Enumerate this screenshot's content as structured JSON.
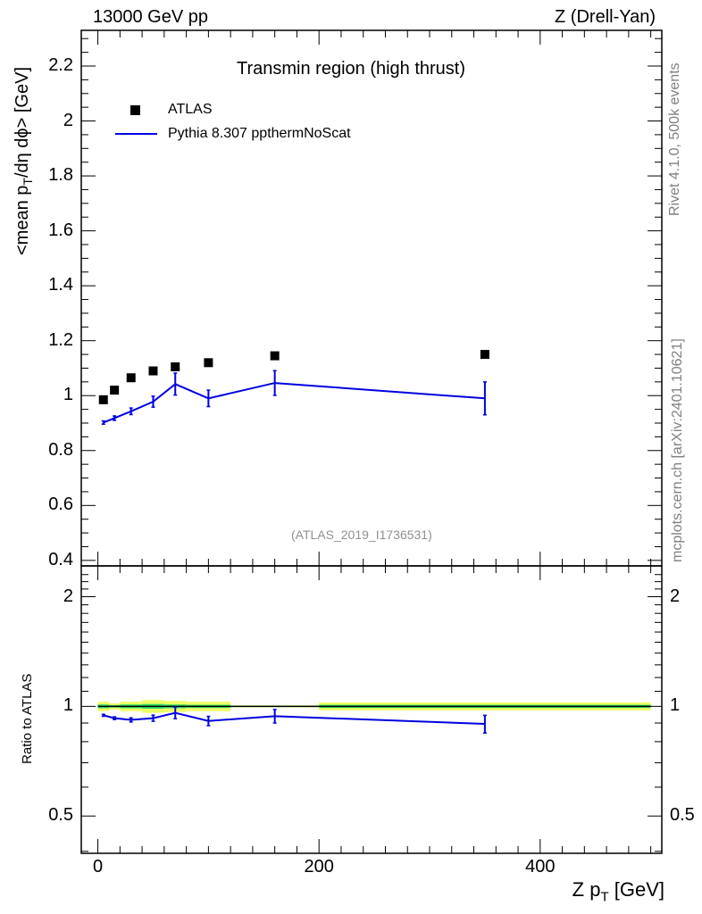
{
  "header": {
    "left": "13000 GeV pp",
    "right": "Z (Drell-Yan)"
  },
  "side_labels": {
    "rivet": "Rivet 4.1.0,  500k events",
    "source": "mcplots.cern.ch [arXiv:2401.10621]"
  },
  "colors": {
    "data": "#000000",
    "mc": "#0000e0",
    "band_inner": "#33dd66",
    "band_outer": "#eeff66",
    "watermark": "#909090"
  },
  "chart_data": [
    {
      "type": "line",
      "panel": "main",
      "title": "Transmin region (high thrust)",
      "watermark": "(ATLAS_2019_I1736531)",
      "ylabel_parts": {
        "a": "<mean p",
        "sub": "T",
        "b": "/dη dϕ> [GeV]"
      },
      "ylim": [
        0.38,
        2.33
      ],
      "yticks": [
        0.4,
        0.6,
        0.8,
        1,
        1.2,
        1.4,
        1.6,
        1.8,
        2,
        2.2
      ],
      "ytick_labels": [
        "0.4",
        "0.6",
        "0.8",
        "1",
        "1.2",
        "1.4",
        "1.6",
        "1.8",
        "2",
        "2.2"
      ],
      "legend": {
        "data_label": "ATLAS",
        "mc_label": "Pythia 8.307 ppthermNoScat",
        "position": "top-left"
      },
      "series": [
        {
          "name": "ATLAS",
          "style": "markers",
          "x": [
            5,
            15,
            30,
            50,
            70,
            100,
            160,
            350
          ],
          "y": [
            0.985,
            1.02,
            1.065,
            1.09,
            1.105,
            1.12,
            1.145,
            1.15
          ]
        },
        {
          "name": "Pythia 8.307 ppthermNoScat",
          "style": "line",
          "x": [
            5,
            15,
            30,
            50,
            70,
            100,
            160,
            350
          ],
          "y": [
            0.902,
            0.918,
            0.943,
            0.978,
            1.042,
            0.99,
            1.046,
            0.99
          ],
          "err": [
            0.006,
            0.008,
            0.012,
            0.02,
            0.04,
            0.03,
            0.045,
            0.06
          ]
        }
      ]
    },
    {
      "type": "line",
      "panel": "ratio",
      "ylabel": "Ratio to ATLAS",
      "xlabel_parts": {
        "a": "Z p",
        "sub": "T",
        "b": " [GeV]"
      },
      "xlim": [
        -15,
        510
      ],
      "xticks": [
        0,
        200,
        400
      ],
      "xtick_labels": [
        "0",
        "200",
        "400"
      ],
      "ylim": [
        0.395,
        2.43
      ],
      "yscale": "log",
      "yticks": [
        0.5,
        1,
        2
      ],
      "ytick_labels": [
        "0.5",
        "1",
        "2"
      ],
      "band_bins": [
        {
          "lo": 0,
          "hi": 10,
          "inner": 0.012,
          "outer": 0.03
        },
        {
          "lo": 10,
          "hi": 20,
          "inner": 0.008,
          "outer": 0.02
        },
        {
          "lo": 20,
          "hi": 40,
          "inner": 0.012,
          "outer": 0.03
        },
        {
          "lo": 40,
          "hi": 60,
          "inner": 0.015,
          "outer": 0.04
        },
        {
          "lo": 60,
          "hi": 80,
          "inner": 0.012,
          "outer": 0.035
        },
        {
          "lo": 80,
          "hi": 120,
          "inner": 0.01,
          "outer": 0.03
        },
        {
          "lo": 120,
          "hi": 200,
          "inner": 0.004,
          "outer": 0.006
        },
        {
          "lo": 200,
          "hi": 500,
          "inner": 0.01,
          "outer": 0.025
        }
      ],
      "series": [
        {
          "name": "Pythia 8.307 ppthermNoScat / ATLAS",
          "style": "line",
          "x": [
            5,
            15,
            30,
            50,
            70,
            100,
            160,
            350
          ],
          "y": [
            0.945,
            0.928,
            0.918,
            0.928,
            0.96,
            0.912,
            0.94,
            0.895
          ],
          "err": [
            0.006,
            0.008,
            0.012,
            0.018,
            0.035,
            0.027,
            0.04,
            0.05
          ]
        }
      ]
    }
  ]
}
